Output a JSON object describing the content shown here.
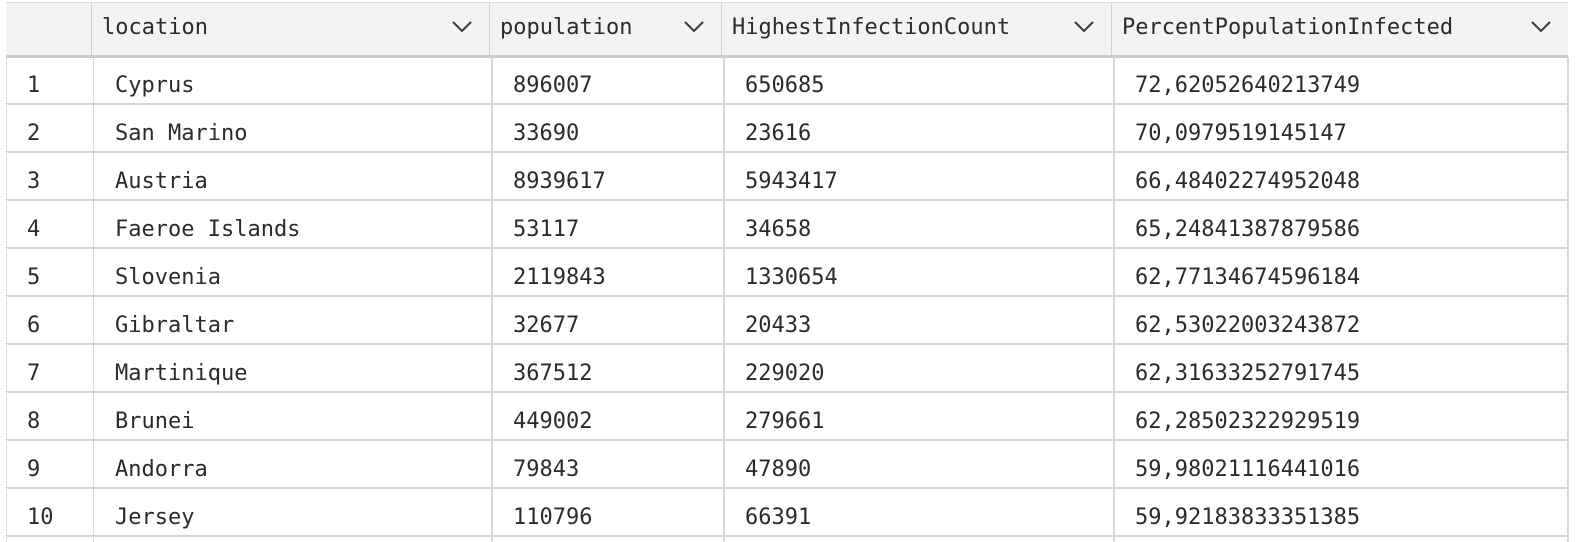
{
  "table": {
    "columns": [
      {
        "label": "location"
      },
      {
        "label": "population"
      },
      {
        "label": "HighestInfectionCount"
      },
      {
        "label": "PercentPopulationInfected"
      }
    ],
    "rows": [
      {
        "n": "1",
        "location": "Cyprus",
        "population": "896007",
        "highest": "650685",
        "percent": "72,62052640213749"
      },
      {
        "n": "2",
        "location": "San Marino",
        "population": "33690",
        "highest": "23616",
        "percent": "70,0979519145147"
      },
      {
        "n": "3",
        "location": "Austria",
        "population": "8939617",
        "highest": "5943417",
        "percent": "66,48402274952048"
      },
      {
        "n": "4",
        "location": "Faeroe Islands",
        "population": "53117",
        "highest": "34658",
        "percent": "65,24841387879586"
      },
      {
        "n": "5",
        "location": "Slovenia",
        "population": "2119843",
        "highest": "1330654",
        "percent": "62,77134674596184"
      },
      {
        "n": "6",
        "location": "Gibraltar",
        "population": "32677",
        "highest": "20433",
        "percent": "62,53022003243872"
      },
      {
        "n": "7",
        "location": "Martinique",
        "population": "367512",
        "highest": "229020",
        "percent": "62,31633252791745"
      },
      {
        "n": "8",
        "location": "Brunei",
        "population": "449002",
        "highest": "279661",
        "percent": "62,28502322929519"
      },
      {
        "n": "9",
        "location": "Andorra",
        "population": "79843",
        "highest": "47890",
        "percent": "59,98021116441016"
      },
      {
        "n": "10",
        "location": "Jersey",
        "population": "110796",
        "highest": "66391",
        "percent": "59,92183833351385"
      }
    ]
  },
  "icons": {
    "sort": "chevron-down-icon"
  },
  "colors": {
    "header_bg": "#f3f3f3",
    "grid_line": "#d6d6d6",
    "text": "#2b2b2b"
  }
}
